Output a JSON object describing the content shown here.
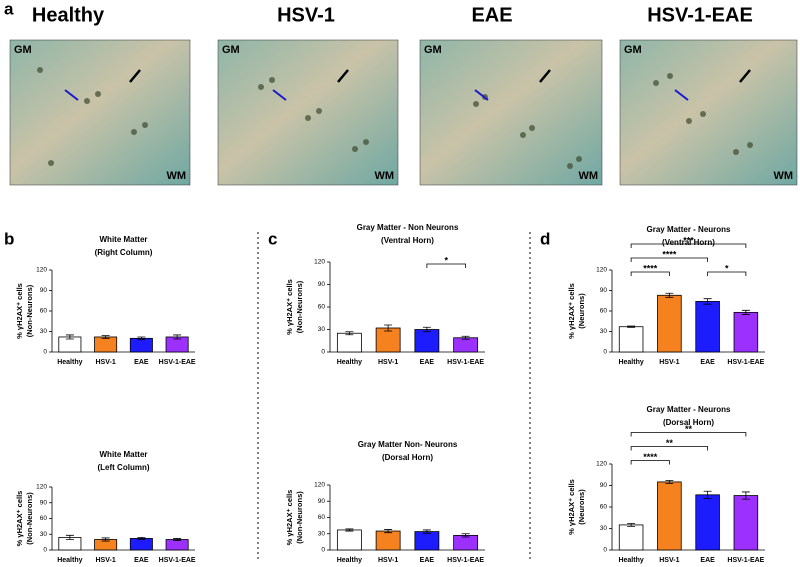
{
  "figure": {
    "panel_labels": [
      "a",
      "b",
      "c",
      "d"
    ],
    "images": [
      {
        "title": "Healthy",
        "labels": [
          "GM",
          "WM"
        ]
      },
      {
        "title": "HSV-1",
        "labels": [
          "GM",
          "WM"
        ]
      },
      {
        "title": "EAE",
        "labels": [
          "GM",
          "WM"
        ]
      },
      {
        "title": "HSV-1-EAE",
        "labels": [
          "GM",
          "WM"
        ]
      }
    ]
  },
  "chart_data": [
    {
      "type": "bar",
      "title": "White Matter",
      "subtitle": "(Right Column)",
      "ylabel": "% γH2AX⁺ cells",
      "ylabel2": "(Non-Neurons)",
      "categories": [
        "Healthy",
        "HSV-1",
        "EAE",
        "HSV-1-EAE"
      ],
      "colors": [
        "#ffffff",
        "#f5821f",
        "#1c1cff",
        "#9b30ff"
      ],
      "values": [
        22,
        22,
        20,
        22
      ],
      "errors": [
        3,
        2,
        2,
        3
      ],
      "ylim": [
        0,
        120
      ],
      "yticks": [
        0,
        30,
        60,
        90,
        120
      ],
      "annotations": []
    },
    {
      "type": "bar",
      "title": "White Matter",
      "subtitle": "(Left Column)",
      "ylabel": "% γH2AX⁺ cells",
      "ylabel2": "(Non-Neurons)",
      "categories": [
        "Healthy",
        "HSV-1",
        "EAE",
        "HSV-1-EAE"
      ],
      "colors": [
        "#ffffff",
        "#f5821f",
        "#1c1cff",
        "#9b30ff"
      ],
      "values": [
        24,
        20,
        22,
        20
      ],
      "errors": [
        4,
        3,
        2,
        2
      ],
      "ylim": [
        0,
        120
      ],
      "yticks": [
        0,
        30,
        60,
        90,
        120
      ],
      "annotations": []
    },
    {
      "type": "bar",
      "title": "Gray Matter - Non Neurons",
      "subtitle": "(Ventral Horn)",
      "ylabel": "% γH2AX⁺ cells",
      "ylabel2": "(Non-Neurons)",
      "categories": [
        "Healthy",
        "HSV-1",
        "EAE",
        "HSV-1-EAE"
      ],
      "colors": [
        "#ffffff",
        "#f5821f",
        "#1c1cff",
        "#9b30ff"
      ],
      "values": [
        25,
        32,
        30,
        19
      ],
      "errors": [
        2,
        4,
        3,
        2
      ],
      "ylim": [
        0,
        120
      ],
      "yticks": [
        0,
        30,
        60,
        90,
        120
      ],
      "annotations": [
        {
          "from": 2,
          "to": 3,
          "label": "*"
        }
      ]
    },
    {
      "type": "bar",
      "title": "Gray Matter Non- Neurons",
      "subtitle": "(Dorsal Horn)",
      "ylabel": "% γH2AX⁺ cells",
      "ylabel2": "(Non-Neurons)",
      "categories": [
        "Healthy",
        "HSV-1",
        "EAE",
        "HSV-1-EAE"
      ],
      "colors": [
        "#ffffff",
        "#f5821f",
        "#1c1cff",
        "#9b30ff"
      ],
      "values": [
        37,
        35,
        34,
        27
      ],
      "errors": [
        2,
        3,
        3,
        3
      ],
      "ylim": [
        0,
        120
      ],
      "yticks": [
        0,
        30,
        60,
        90,
        120
      ],
      "annotations": []
    },
    {
      "type": "bar",
      "title": "Gray Matter - Neurons",
      "subtitle": "(Ventral Horn)",
      "ylabel": "% γH2AX⁺ cells",
      "ylabel2": "(Neurons)",
      "categories": [
        "Healthy",
        "HSV-1",
        "EAE",
        "HSV-1-EAE"
      ],
      "colors": [
        "#ffffff",
        "#f5821f",
        "#1c1cff",
        "#9b30ff"
      ],
      "values": [
        37,
        83,
        74,
        58
      ],
      "errors": [
        1,
        3,
        4,
        3
      ],
      "ylim": [
        0,
        120
      ],
      "yticks": [
        0,
        30,
        60,
        90,
        120
      ],
      "annotations": [
        {
          "from": 0,
          "to": 1,
          "label": "****"
        },
        {
          "from": 2,
          "to": 3,
          "label": "*"
        },
        {
          "from": 0,
          "to": 2,
          "label": "****"
        },
        {
          "from": 0,
          "to": 3,
          "label": "***"
        }
      ]
    },
    {
      "type": "bar",
      "title": "Gray Matter - Neurons",
      "subtitle": "(Dorsal Horn)",
      "ylabel": "% γH2AX⁺ cells",
      "ylabel2": "(Neurons)",
      "categories": [
        "Healthy",
        "HSV-1",
        "EAE",
        "HSV-1-EAE"
      ],
      "colors": [
        "#ffffff",
        "#f5821f",
        "#1c1cff",
        "#9b30ff"
      ],
      "values": [
        35,
        95,
        77,
        76
      ],
      "errors": [
        2,
        2,
        5,
        5
      ],
      "ylim": [
        0,
        120
      ],
      "yticks": [
        0,
        30,
        60,
        90,
        120
      ],
      "annotations": [
        {
          "from": 0,
          "to": 1,
          "label": "****"
        },
        {
          "from": 0,
          "to": 2,
          "label": "**"
        },
        {
          "from": 0,
          "to": 3,
          "label": "**"
        }
      ]
    }
  ]
}
